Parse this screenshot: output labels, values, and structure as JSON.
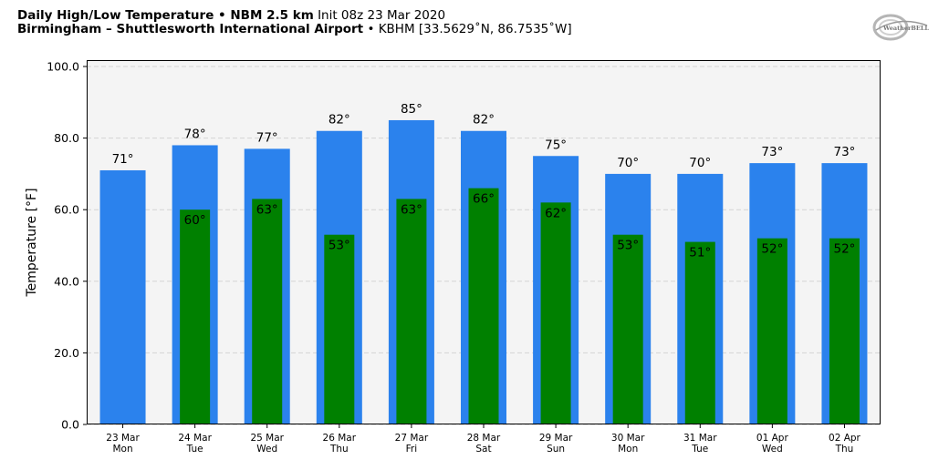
{
  "header": {
    "title_bold": "Daily High/Low Temperature • NBM 2.5 km",
    "title_init": "Init 08z 23 Mar 2020",
    "location_bold": "Birmingham – Shuttlesworth International Airport",
    "location_rest": "• KBHM [33.5629˚N, 86.7535˚W]"
  },
  "logo": {
    "text": "WeatherBELL"
  },
  "chart_data": {
    "type": "bar",
    "title": "Daily High/Low Temperature • NBM 2.5 km",
    "ylabel": "Temperature [°F]",
    "xlabel": "",
    "ylim": [
      0,
      100
    ],
    "yticks": [
      "0.0",
      "20.0",
      "40.0",
      "60.0",
      "80.0",
      "100.0"
    ],
    "grid": true,
    "categories": [
      {
        "date": "23 Mar",
        "day": "Mon"
      },
      {
        "date": "24 Mar",
        "day": "Tue"
      },
      {
        "date": "25 Mar",
        "day": "Wed"
      },
      {
        "date": "26 Mar",
        "day": "Thu"
      },
      {
        "date": "27 Mar",
        "day": "Fri"
      },
      {
        "date": "28 Mar",
        "day": "Sat"
      },
      {
        "date": "29 Mar",
        "day": "Sun"
      },
      {
        "date": "30 Mar",
        "day": "Mon"
      },
      {
        "date": "31 Mar",
        "day": "Tue"
      },
      {
        "date": "01 Apr",
        "day": "Wed"
      },
      {
        "date": "02 Apr",
        "day": "Thu"
      }
    ],
    "series": [
      {
        "key": "high",
        "color": "#2b82ed",
        "values": [
          71,
          78,
          77,
          82,
          85,
          82,
          75,
          70,
          70,
          73,
          73
        ]
      },
      {
        "key": "low",
        "color": "#008000",
        "values": [
          null,
          60,
          63,
          53,
          63,
          66,
          62,
          53,
          51,
          52,
          52
        ]
      }
    ],
    "colors": {
      "plot_bg": "#f4f4f4",
      "grid": "#d3d3d3"
    }
  }
}
